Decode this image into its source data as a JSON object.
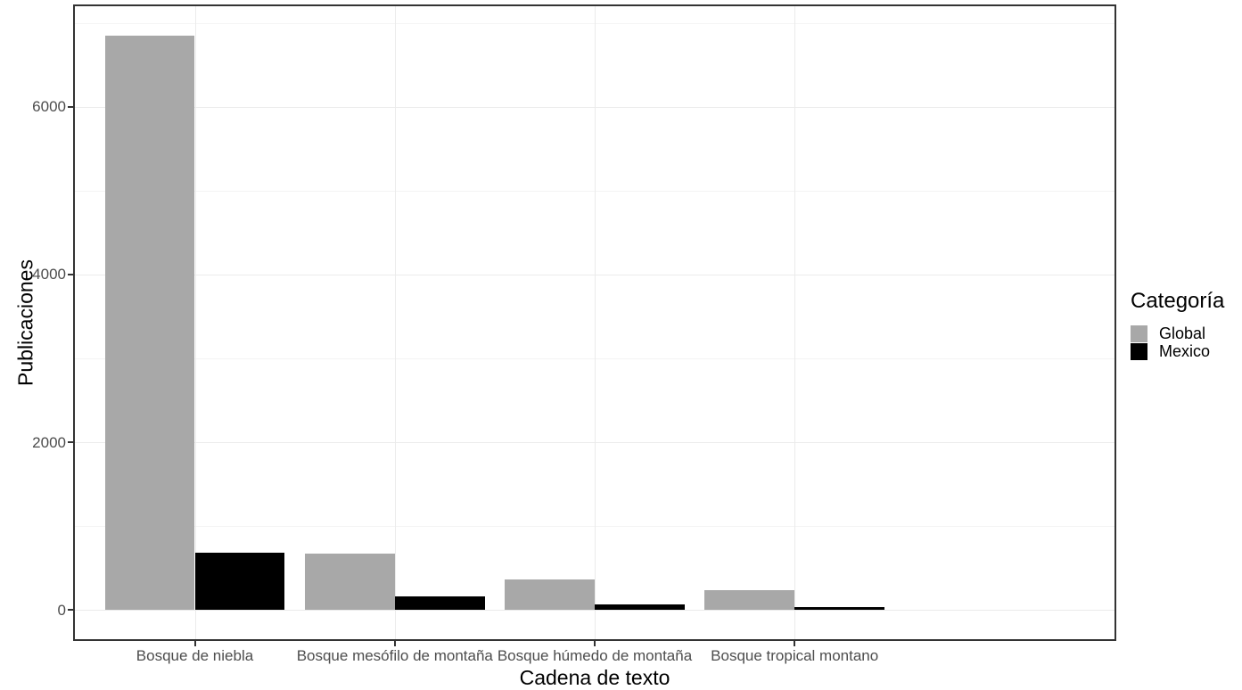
{
  "chart_data": {
    "type": "bar",
    "title": "",
    "xlabel": "Cadena de texto",
    "ylabel": "Publicaciones",
    "categories": [
      "Bosque de niebla",
      "Bosque mesófilo de montaña",
      "Bosque húmedo de montaña",
      "Bosque tropical montano"
    ],
    "series": [
      {
        "name": "Global",
        "color": "#a8a8a8",
        "values": [
          6850,
          670,
          360,
          240
        ]
      },
      {
        "name": "Mexico",
        "color": "#000000",
        "values": [
          680,
          160,
          65,
          35
        ]
      }
    ],
    "y_ticks": [
      0,
      2000,
      4000,
      6000
    ],
    "y_tick_labels": [
      "0",
      "2000",
      "4000",
      "6000"
    ],
    "y_minor_ticks": [
      1000,
      3000,
      5000,
      7000
    ],
    "ylim": [
      -350,
      7200
    ],
    "grid": true,
    "legend_title": "Categoría",
    "legend_position": "right",
    "colors": {
      "panel_border": "#333333",
      "grid_major": "#ebebeb",
      "grid_minor": "#f4f4f4",
      "tick_text": "#4d4d4d",
      "axis_title_text": "#000000"
    }
  }
}
